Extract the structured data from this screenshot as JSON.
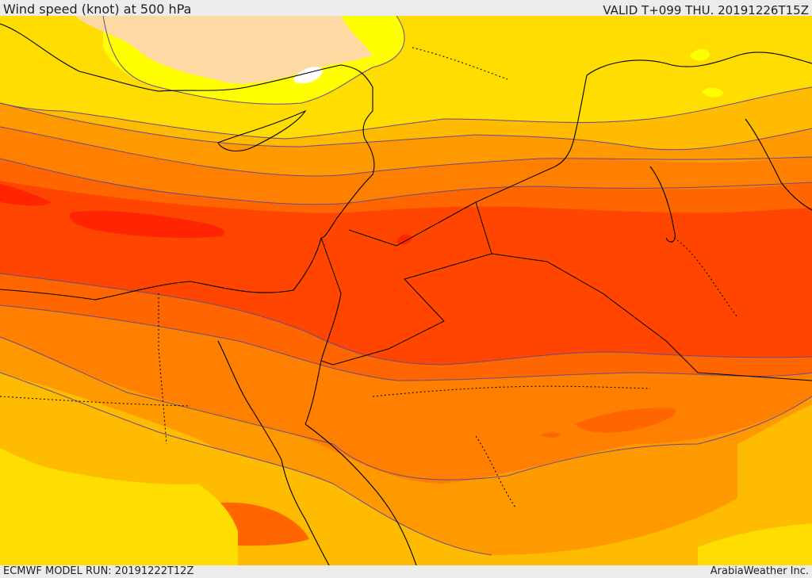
{
  "header": {
    "title": "Wind speed (knot) at 500 hPa",
    "valid": "VALID T+099 THU. 20191226T15Z"
  },
  "footer": {
    "run": "ECMWF MODEL RUN: 20191222T12Z",
    "credit": "ArabiaWeather Inc."
  },
  "map": {
    "palette": {
      "peach": "#fdd9a4",
      "white": "#ffffff",
      "yellow": "#ffff00",
      "gold": "#ffdd00",
      "amber": "#ffbb00",
      "orange_light": "#ff9900",
      "orange": "#ff7f00",
      "orange_dark": "#ff6600",
      "red_orange": "#ff4500",
      "red": "#ff2500",
      "contour_line": "#6a4a8a",
      "coastline": "#000000"
    }
  }
}
